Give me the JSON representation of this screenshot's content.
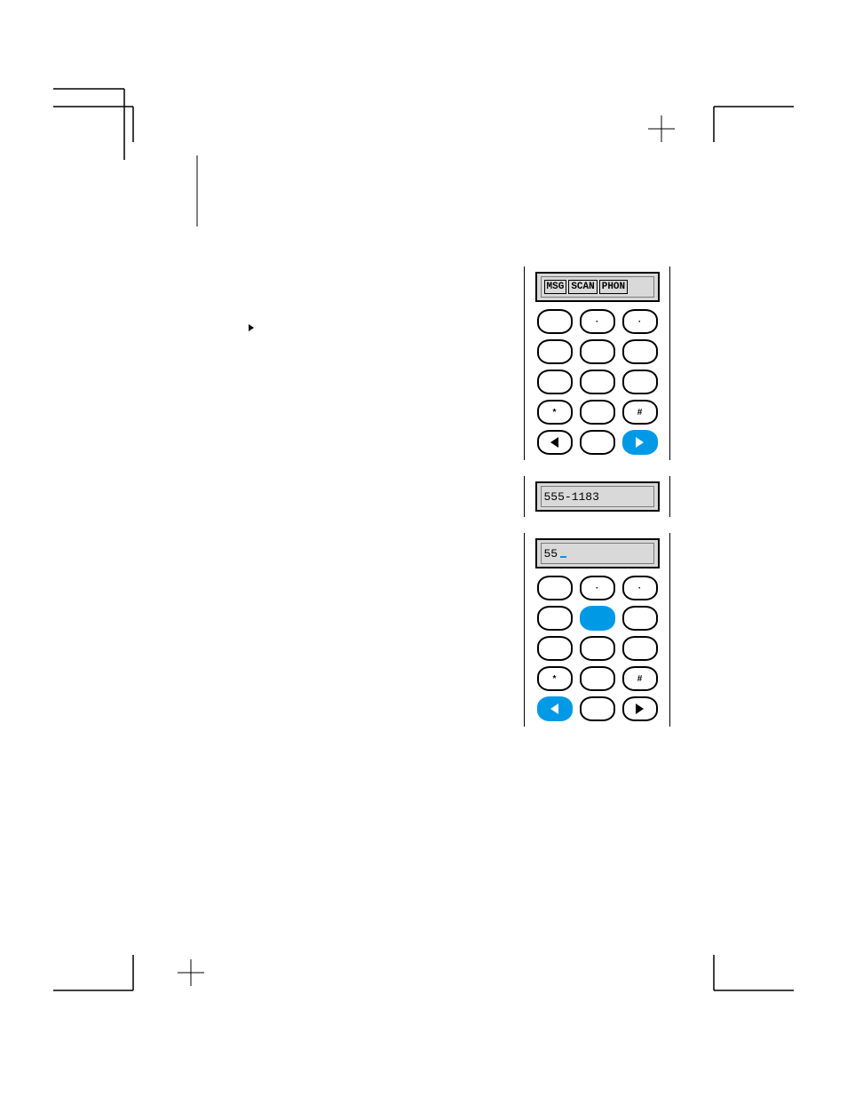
{
  "colors": {
    "accent": "#0099e5",
    "lcd_bg": "#d9d9d9",
    "ink": "#000000",
    "paper": "#ffffff"
  },
  "panel1": {
    "lcd_segments": [
      "MSG",
      "SCAN",
      "PHON"
    ],
    "keys": [
      {
        "label": "",
        "filled": false
      },
      {
        "label": "·",
        "filled": false
      },
      {
        "label": "·",
        "filled": false
      },
      {
        "label": "",
        "filled": false
      },
      {
        "label": "",
        "filled": false
      },
      {
        "label": "",
        "filled": false
      },
      {
        "label": "",
        "filled": false
      },
      {
        "label": "",
        "filled": false
      },
      {
        "label": "",
        "filled": false
      },
      {
        "label": "*",
        "filled": false
      },
      {
        "label": "",
        "filled": false
      },
      {
        "label": "#",
        "filled": false
      },
      {
        "icon": "tri-left",
        "filled": false
      },
      {
        "label": "",
        "filled": false
      },
      {
        "icon": "tri-right",
        "filled": true,
        "icon_color": "white"
      }
    ]
  },
  "panel2": {
    "lcd_text": "555-1183"
  },
  "panel3": {
    "lcd_text": "55",
    "lcd_cursor": true,
    "keys": [
      {
        "label": "",
        "filled": false
      },
      {
        "label": "·",
        "filled": false
      },
      {
        "label": "·",
        "filled": false
      },
      {
        "label": "",
        "filled": false
      },
      {
        "label": "",
        "filled": true
      },
      {
        "label": "",
        "filled": false
      },
      {
        "label": "",
        "filled": false
      },
      {
        "label": "",
        "filled": false
      },
      {
        "label": "",
        "filled": false
      },
      {
        "label": "*",
        "filled": false
      },
      {
        "label": "",
        "filled": false
      },
      {
        "label": "#",
        "filled": false
      },
      {
        "icon": "tri-left",
        "filled": true,
        "icon_color": "white"
      },
      {
        "label": "",
        "filled": false
      },
      {
        "icon": "tri-right",
        "filled": false
      }
    ]
  }
}
